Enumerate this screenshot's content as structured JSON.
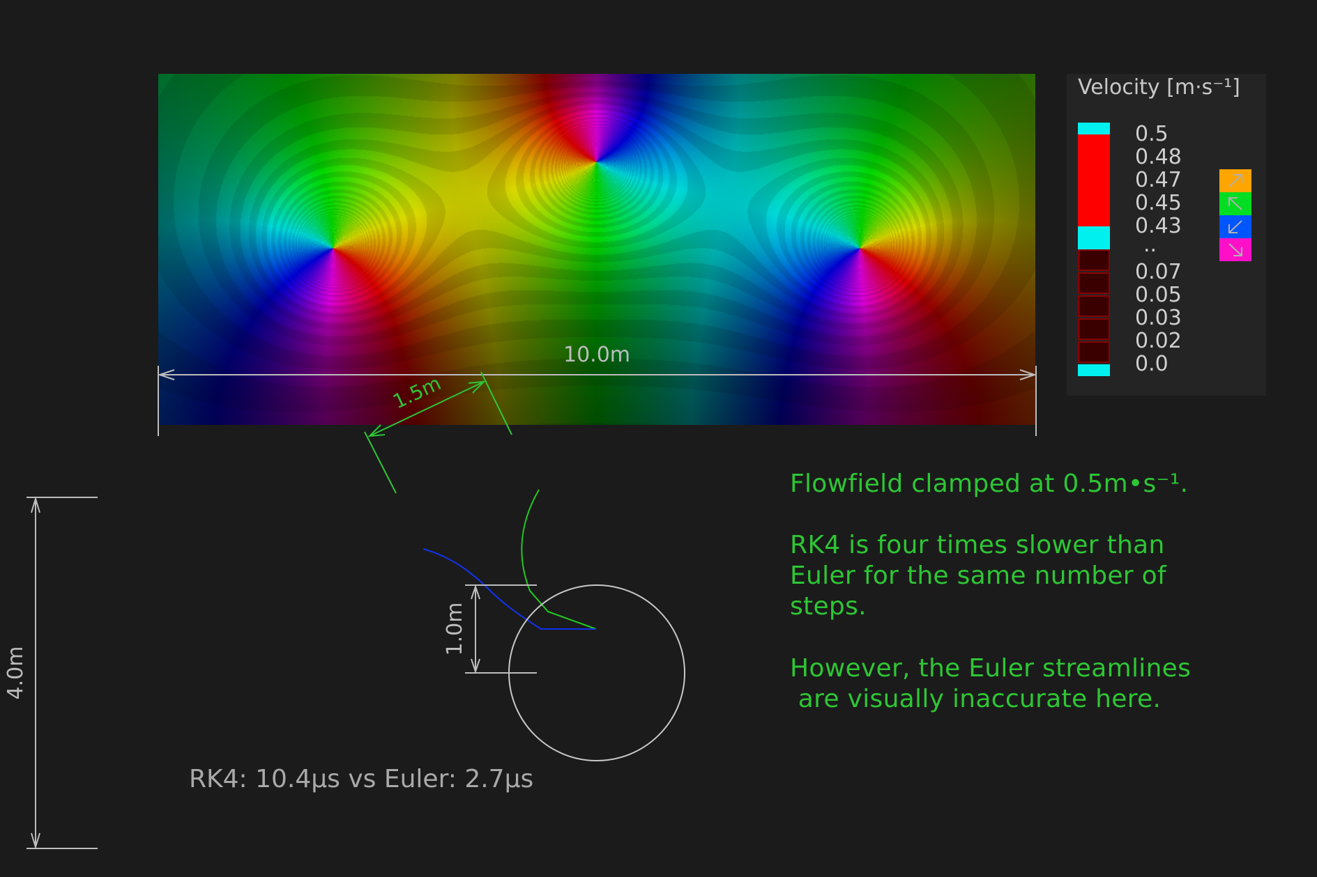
{
  "legend": {
    "title": "Velocity [m·s⁻¹]",
    "values": [
      "0.5",
      "0.48",
      "0.47",
      "0.45",
      "0.43",
      "..",
      "0.07",
      "0.05",
      "0.03",
      "0.02",
      "0.0"
    ],
    "direction_swatches": [
      {
        "icon": "arrow-up-right-icon",
        "color": "#ffa500"
      },
      {
        "icon": "arrow-up-left-icon",
        "color": "#00dd22"
      },
      {
        "icon": "arrow-down-left-icon",
        "color": "#0055ff"
      },
      {
        "icon": "arrow-down-right-icon",
        "color": "#ff10c8"
      }
    ],
    "colors": {
      "cap": "#00f0f0",
      "high": "#ff0000",
      "low": "#3a0000",
      "low_border": "#8a0000"
    }
  },
  "dimensions": {
    "width": "10.0m",
    "offset": "1.5m",
    "radius": "1.0m",
    "height": "4.0m"
  },
  "notes": {
    "clamp": "Flowfield clamped at 0.5m•s⁻¹.",
    "rk4_line1": "RK4 is four times slower than",
    "rk4_line2": "Euler for the same number of",
    "rk4_line3": "steps.",
    "euler_line1": "However, the Euler streamlines",
    "euler_line2": " are visually inaccurate here."
  },
  "timing": "RK4: 10.4μs vs Euler: 2.7μs",
  "streamline_colors": {
    "rk4": "#22cc22",
    "euler": "#1133ee"
  },
  "vortices": [
    {
      "x": 250,
      "y": 250
    },
    {
      "x": 628,
      "y": 126
    },
    {
      "x": 1006,
      "y": 250
    }
  ]
}
